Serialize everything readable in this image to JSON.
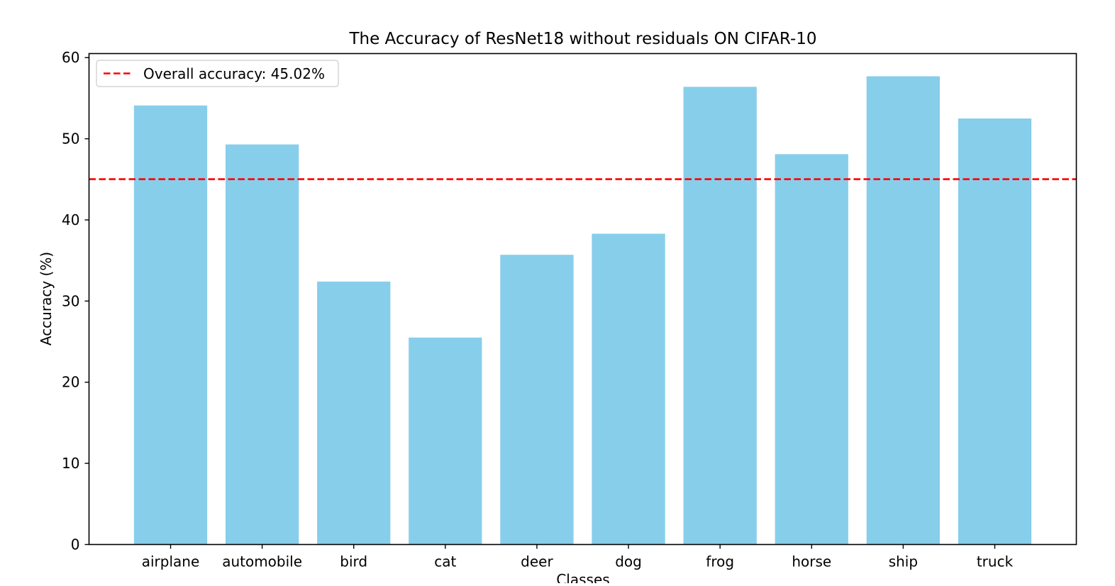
{
  "chart_data": {
    "type": "bar",
    "title": "The Accuracy of ResNet18 without residuals ON CIFAR-10",
    "xlabel": "Classes",
    "ylabel": "Accuracy (%)",
    "categories": [
      "airplane",
      "automobile",
      "bird",
      "cat",
      "deer",
      "dog",
      "frog",
      "horse",
      "ship",
      "truck"
    ],
    "values": [
      54.1,
      49.3,
      32.4,
      25.5,
      35.7,
      38.3,
      56.4,
      48.1,
      57.7,
      52.5
    ],
    "ylim": [
      0,
      60.5
    ],
    "yticks": [
      0,
      10,
      20,
      30,
      40,
      50,
      60
    ],
    "bar_color": "#87CEEB",
    "reference_line": {
      "value": 45.02,
      "label": "Overall accuracy: 45.02%",
      "color": "#ff0000",
      "style": "dashed"
    },
    "legend": {
      "position": "top-left"
    },
    "grid": false
  }
}
